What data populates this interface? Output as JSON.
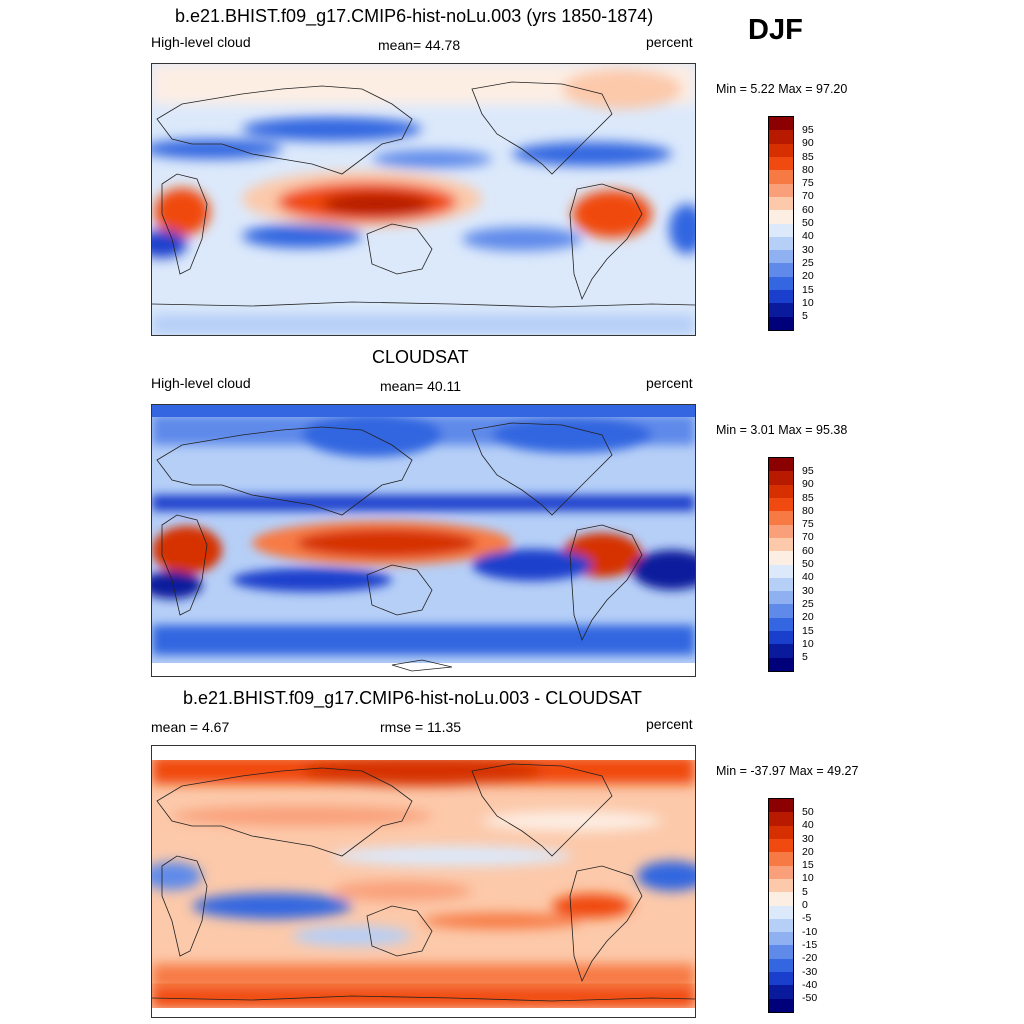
{
  "season": "DJF",
  "panels": [
    {
      "title": "b.e21.BHIST.f09_g17.CMIP6-hist-noLu.003 (yrs 1850-1874)",
      "left_label": "High-level cloud",
      "center_label": "mean=  44.78",
      "right_label": "percent",
      "minmax": "Min =   5.22 Max =  97.20",
      "colorbar_labels": [
        "95",
        "90",
        "85",
        "80",
        "75",
        "70",
        "60",
        "50",
        "40",
        "30",
        "25",
        "20",
        "15",
        "10",
        "5"
      ]
    },
    {
      "title": "CLOUDSAT",
      "left_label": "High-level cloud",
      "center_label": "mean=  40.11",
      "right_label": "percent",
      "minmax": "Min =   3.01 Max =  95.38",
      "colorbar_labels": [
        "95",
        "90",
        "85",
        "80",
        "75",
        "70",
        "60",
        "50",
        "40",
        "30",
        "25",
        "20",
        "15",
        "10",
        "5"
      ]
    },
    {
      "title": "b.e21.BHIST.f09_g17.CMIP6-hist-noLu.003 - CLOUDSAT",
      "left_label": "mean =   4.67",
      "center_label": "rmse =  11.35",
      "right_label": "percent",
      "minmax": "Min = -37.97 Max =  49.27",
      "colorbar_labels": [
        "50",
        "40",
        "30",
        "20",
        "15",
        "10",
        "5",
        "0",
        "-5",
        "-10",
        "-15",
        "-20",
        "-30",
        "-40",
        "-50"
      ]
    }
  ],
  "colorbar_colors": [
    "#8b0000",
    "#b81a00",
    "#d63000",
    "#f04a10",
    "#f77a45",
    "#f9a07a",
    "#fcc9aa",
    "#fdeee4",
    "#dce9fb",
    "#b6cff7",
    "#8fb1f2",
    "#5f8aea",
    "#3366e0",
    "#1a3fcc",
    "#0a1a9c",
    "#00007a"
  ]
}
